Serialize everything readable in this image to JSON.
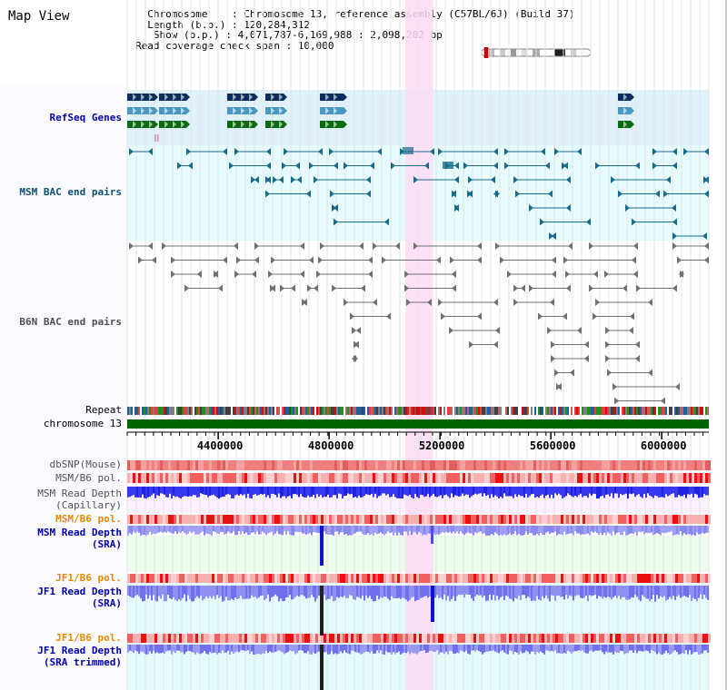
{
  "title": "Map View",
  "info": {
    "line1": "  Chromosome    : Chromosome 13, reference assembly (C57BL/6J) (Build 37)",
    "line2": "  Length (b.p.) : 120,284,312",
    "line3": "   Show (b.p.) : 4,071,787-6,169,988 : 2,098,202 bp",
    "line4": "Read coverage check span : 10,000"
  },
  "axis": {
    "start": 4071787,
    "end": 6169988,
    "ticks": [
      "4400000",
      "4800000",
      "5200000",
      "5600000",
      "6000000"
    ],
    "tick_values": [
      4400000,
      4800000,
      5200000,
      5600000,
      6000000
    ]
  },
  "highlight_region": {
    "start": 5075000,
    "end": 5175000
  },
  "tracks": [
    {
      "id": "refseq",
      "label": "RefSeq Genes",
      "color": "#0000aa"
    },
    {
      "id": "msm_bac",
      "label": "MSM BAC end pairs",
      "color": "#0a4f7a"
    },
    {
      "id": "b6n_bac",
      "label": "B6N BAC end pairs",
      "color": "#505050"
    },
    {
      "id": "repeat",
      "label": "Repeat",
      "color": "#000000"
    },
    {
      "id": "chrom",
      "label": "chromosome 13",
      "color": "#000000"
    },
    {
      "id": "dbsnp",
      "label": "dbSNP(Mouse)",
      "color": "#505050"
    },
    {
      "id": "msm_b6_pol",
      "label": "MSM/B6 pol.",
      "color": "#505050"
    },
    {
      "id": "msm_cap_1",
      "label": "MSM Read Depth",
      "color": "#505050"
    },
    {
      "id": "msm_cap_2",
      "label": "(Capillary)",
      "color": "#505050"
    },
    {
      "id": "msm_b6_pol2",
      "label": "MSM/B6 pol.",
      "color": "#e08a00"
    },
    {
      "id": "msm_sra_1",
      "label": "MSM Read Depth",
      "color": "#0000aa"
    },
    {
      "id": "msm_sra_2",
      "label": "(SRA)",
      "color": "#0000aa"
    },
    {
      "id": "jf1_pol",
      "label": "JF1/B6 pol.",
      "color": "#e08a00"
    },
    {
      "id": "jf1_sra_1",
      "label": "JF1 Read Depth",
      "color": "#0000aa"
    },
    {
      "id": "jf1_sra_2",
      "label": "(SRA)",
      "color": "#0000aa"
    },
    {
      "id": "jf1_pol2",
      "label": "JF1/B6 pol.",
      "color": "#e08a00"
    },
    {
      "id": "jf1_trim_1",
      "label": "JF1 Read Depth",
      "color": "#0000aa"
    },
    {
      "id": "jf1_trim_2",
      "label": "(SRA trimmed)",
      "color": "#0000aa"
    }
  ],
  "colors": {
    "refseq_bg": "#dff2fb",
    "bac_bg": "#e6fbfd",
    "highlight": "#fbdcf4",
    "chrom_bar": "#006400",
    "gene_dark": "#0b2e5c",
    "gene_mid": "#4a97c0",
    "gene_green": "#0a6a10",
    "msm_pair": "#1a6a8a",
    "b6n_pair": "#707070"
  }
}
